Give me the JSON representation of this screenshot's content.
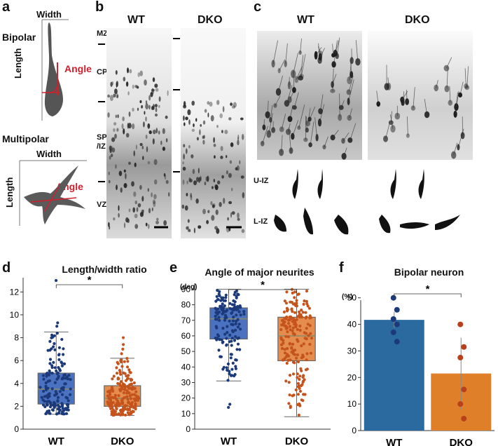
{
  "panels": {
    "a": {
      "label": "a",
      "bipolar_title": "Bipolar",
      "multipolar_title": "Multipolar",
      "width_label": "Width",
      "length_label": "Length",
      "angle_label": "Angle",
      "accent_color": "#d0202e"
    },
    "b": {
      "label": "b",
      "wt_label": "WT",
      "dko_label": "DKO",
      "layers": [
        "MZ",
        "CP",
        "SP\n/IZ",
        "VZ"
      ]
    },
    "c": {
      "label": "c",
      "wt_label": "WT",
      "dko_label": "DKO",
      "row_labels": [
        "U-IZ",
        "L-IZ"
      ]
    },
    "d": {
      "label": "d"
    },
    "e": {
      "label": "e"
    },
    "f": {
      "label": "f"
    }
  },
  "chart_data": [
    {
      "id": "d",
      "type": "box",
      "title": "Length/width ratio",
      "categories": [
        "WT",
        "DKO"
      ],
      "ylim": [
        0,
        13
      ],
      "yticks": [
        0,
        2,
        4,
        6,
        8,
        10,
        12
      ],
      "significance": "*",
      "colors": [
        "#4a72c0",
        "#e48d4f"
      ],
      "point_colors": [
        "#1c3a7a",
        "#c5531c"
      ],
      "boxes": [
        {
          "name": "WT",
          "whisker_low": 1.3,
          "q1": 2.2,
          "median": 3.5,
          "q3": 4.9,
          "whisker_high": 8.5,
          "outliers": [
            9.0,
            9.3,
            13.0
          ],
          "n": 150
        },
        {
          "name": "DKO",
          "whisker_low": 1.2,
          "q1": 2.0,
          "median": 2.7,
          "q3": 3.8,
          "whisker_high": 6.2,
          "outliers": [
            6.6,
            7.0,
            7.4,
            8.0
          ],
          "n": 190
        }
      ]
    },
    {
      "id": "e",
      "type": "box",
      "title": "Angle of major neurites",
      "unit": "(deg)",
      "categories": [
        "WT",
        "DKO"
      ],
      "ylim": [
        0,
        92
      ],
      "yticks": [
        0,
        10,
        20,
        30,
        40,
        50,
        60,
        70,
        80,
        90
      ],
      "significance": "*",
      "colors": [
        "#4a72c0",
        "#e48d4f"
      ],
      "point_colors": [
        "#1c3a7a",
        "#c5531c"
      ],
      "boxes": [
        {
          "name": "WT",
          "whisker_low": 31,
          "q1": 58,
          "median": 71,
          "q3": 78,
          "whisker_high": 90,
          "outliers": [
            14,
            16
          ],
          "n": 150
        },
        {
          "name": "DKO",
          "whisker_low": 8,
          "q1": 44,
          "median": 60,
          "q3": 72,
          "whisker_high": 90,
          "outliers": [],
          "n": 190
        }
      ]
    },
    {
      "id": "f",
      "type": "bar",
      "title": "Bipolar neuron",
      "unit": "(%)",
      "categories": [
        "WT",
        "DKO"
      ],
      "values": [
        41.7,
        21.5
      ],
      "error": [
        3.0,
        13.5
      ],
      "points": [
        [
          50,
          45.5,
          42,
          40,
          37,
          33.5
        ],
        [
          40,
          31.5,
          27.5,
          15.5,
          10,
          4.5
        ]
      ],
      "ylim": [
        0,
        56
      ],
      "yticks": [
        0,
        10,
        20,
        30,
        40,
        50
      ],
      "significance": "*",
      "colors": [
        "#2a6a9e",
        "#e07f2a"
      ],
      "point_colors": [
        "#1c3a7a",
        "#b8401c"
      ]
    }
  ]
}
